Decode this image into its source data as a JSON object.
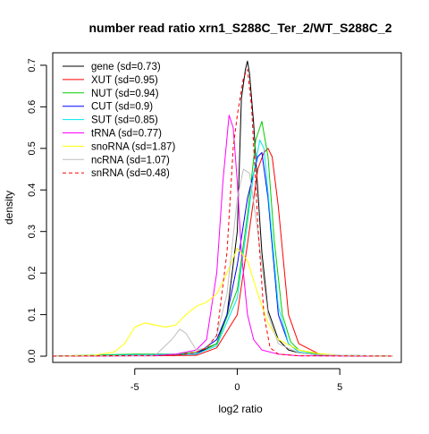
{
  "chart_data": {
    "type": "line",
    "title": "number read ratio xrn1_S288C_Ter_2/WT_S288C_2",
    "xlabel": "log2 ratio",
    "ylabel": "density",
    "xlim": [
      -9,
      8
    ],
    "ylim": [
      -0.015,
      0.73
    ],
    "xticks": [
      -5,
      0,
      5
    ],
    "yticks": [
      0.0,
      0.1,
      0.2,
      0.3,
      0.4,
      0.5,
      0.6,
      0.7
    ],
    "xtick_labels": [
      "-5",
      "0",
      "5"
    ],
    "ytick_labels": [
      "0.0",
      "0.1",
      "0.2",
      "0.3",
      "0.4",
      "0.5",
      "0.6",
      "0.7"
    ],
    "grid": false,
    "legend_position": "top-left",
    "series": [
      {
        "name": "gene (sd=0.73)",
        "color": "#000000",
        "dash": false,
        "x": [
          -9,
          -3,
          -2,
          -1,
          -0.5,
          0,
          0.2,
          0.4,
          0.5,
          0.6,
          0.8,
          1.0,
          1.2,
          1.5,
          2,
          2.5,
          3,
          4,
          5,
          7.6
        ],
        "y": [
          0,
          0.002,
          0.006,
          0.03,
          0.1,
          0.3,
          0.62,
          0.69,
          0.71,
          0.68,
          0.56,
          0.4,
          0.25,
          0.11,
          0.04,
          0.015,
          0.008,
          0.003,
          0.001,
          0
        ]
      },
      {
        "name": "XUT (sd=0.95)",
        "color": "#ff0000",
        "dash": false,
        "x": [
          -9,
          -2,
          -1,
          0,
          0.5,
          1.0,
          1.3,
          1.5,
          1.7,
          2,
          2.5,
          3,
          4,
          5,
          7.6
        ],
        "y": [
          0,
          0.002,
          0.02,
          0.1,
          0.27,
          0.45,
          0.49,
          0.5,
          0.48,
          0.36,
          0.1,
          0.03,
          0.005,
          0.002,
          0
        ]
      },
      {
        "name": "NUT (sd=0.94)",
        "color": "#00cd00",
        "dash": false,
        "x": [
          -9,
          -5,
          -4,
          -3,
          -2,
          -1,
          0,
          0.5,
          0.9,
          1.2,
          1.5,
          1.8,
          2.2,
          2.6,
          3,
          4,
          5,
          7.6
        ],
        "y": [
          0,
          0.005,
          0.005,
          0.005,
          0.01,
          0.03,
          0.16,
          0.34,
          0.52,
          0.565,
          0.48,
          0.28,
          0.1,
          0.035,
          0.015,
          0.004,
          0.002,
          0
        ]
      },
      {
        "name": "CUT (sd=0.9)",
        "color": "#0000ff",
        "dash": false,
        "x": [
          -9,
          -2,
          -1,
          -0.5,
          0,
          0.5,
          1.0,
          1.2,
          1.5,
          2,
          2.5,
          3,
          4,
          7.6
        ],
        "y": [
          0,
          0.005,
          0.04,
          0.1,
          0.22,
          0.38,
          0.48,
          0.49,
          0.38,
          0.1,
          0.03,
          0.01,
          0.002,
          0
        ]
      },
      {
        "name": "SUT (sd=0.85)",
        "color": "#00e5ee",
        "dash": false,
        "x": [
          -9,
          -2,
          -1,
          0,
          0.5,
          0.8,
          1.1,
          1.3,
          1.6,
          2,
          2.5,
          3,
          4,
          7.6
        ],
        "y": [
          0,
          0.005,
          0.025,
          0.14,
          0.32,
          0.44,
          0.52,
          0.5,
          0.34,
          0.12,
          0.03,
          0.01,
          0.003,
          0
        ]
      },
      {
        "name": "tRNA (sd=0.77)",
        "color": "#ff00ff",
        "dash": false,
        "x": [
          -9,
          -4,
          -3,
          -2,
          -1.5,
          -1,
          -0.7,
          -0.4,
          -0.2,
          0,
          0.2,
          0.5,
          0.8,
          1.2,
          2,
          3,
          7.6
        ],
        "y": [
          0,
          0.001,
          0.005,
          0.015,
          0.04,
          0.2,
          0.42,
          0.58,
          0.55,
          0.42,
          0.25,
          0.1,
          0.04,
          0.015,
          0.005,
          0.001,
          0
        ]
      },
      {
        "name": "snoRNA (sd=1.87)",
        "color": "#ffff00",
        "dash": false,
        "x": [
          -9,
          -7,
          -6,
          -5.5,
          -5,
          -4.5,
          -4,
          -3.5,
          -3,
          -2.5,
          -2,
          -1.5,
          -1,
          -0.5,
          0,
          0.5,
          1,
          1.5,
          2,
          3,
          4,
          5,
          7.6
        ],
        "y": [
          0,
          0.002,
          0.01,
          0.03,
          0.07,
          0.08,
          0.075,
          0.07,
          0.075,
          0.1,
          0.12,
          0.13,
          0.15,
          0.2,
          0.26,
          0.23,
          0.15,
          0.08,
          0.04,
          0.015,
          0.006,
          0.002,
          0
        ]
      },
      {
        "name": "ncRNA (sd=1.07)",
        "color": "#bebebe",
        "dash": false,
        "x": [
          -9,
          -4,
          -3.2,
          -2.8,
          -2.5,
          -2,
          -1.5,
          -1,
          -0.5,
          0,
          0.3,
          0.6,
          1.0,
          1.5,
          2,
          3,
          4,
          7.6
        ],
        "y": [
          0,
          0.002,
          0.04,
          0.065,
          0.055,
          0.015,
          0.02,
          0.05,
          0.15,
          0.38,
          0.45,
          0.44,
          0.3,
          0.1,
          0.03,
          0.008,
          0.003,
          0
        ]
      },
      {
        "name": "snRNA (sd=0.48)",
        "color": "#ff0000",
        "dash": true,
        "x": [
          -9,
          -3,
          -2,
          -1.5,
          -1,
          -0.5,
          -0.2,
          0,
          0.3,
          0.5,
          0.7,
          1.0,
          1.3,
          1.6,
          2,
          3,
          7.6
        ],
        "y": [
          0,
          0.002,
          0.01,
          0.02,
          0.05,
          0.25,
          0.5,
          0.58,
          0.67,
          0.69,
          0.6,
          0.32,
          0.1,
          0.02,
          0.005,
          0.001,
          0
        ]
      }
    ]
  }
}
